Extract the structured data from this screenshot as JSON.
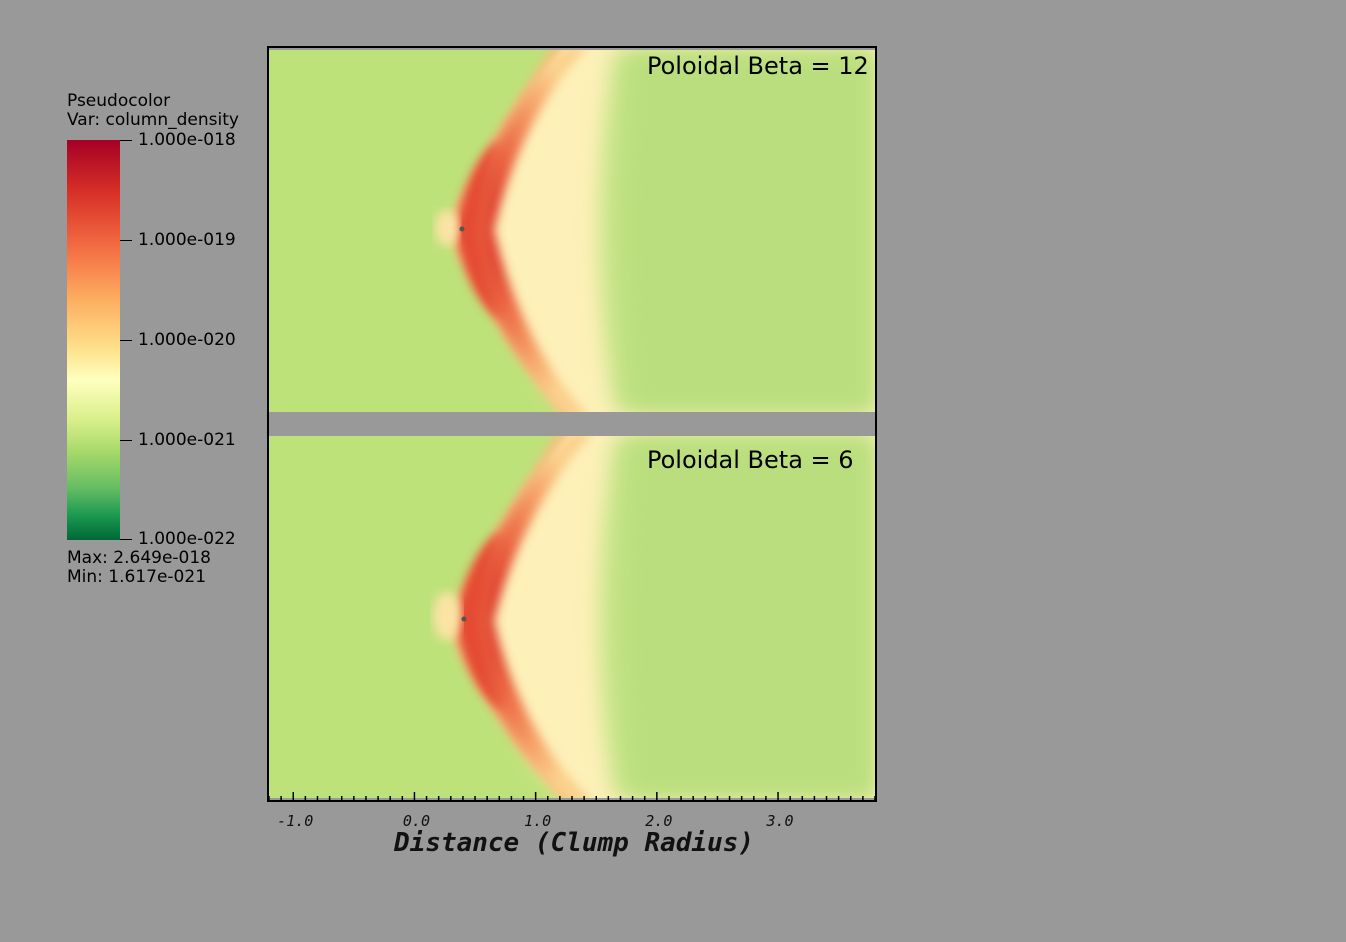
{
  "legend": {
    "title": "Pseudocolor",
    "var_label": "Var: column_density",
    "ticks": [
      "1.000e-018",
      "1.000e-019",
      "1.000e-020",
      "1.000e-021",
      "1.000e-022"
    ],
    "max_label": "Max:  2.649e-018",
    "min_label": "Min:  1.617e-021",
    "colors": [
      "#a50026",
      "#d73027",
      "#f46d43",
      "#fdae61",
      "#fee08b",
      "#ffffbf",
      "#d9ef8b",
      "#a6d96a",
      "#66bd63",
      "#1a9850",
      "#006837"
    ]
  },
  "panels": [
    {
      "label": "Poloidal Beta = 12"
    },
    {
      "label": "Poloidal Beta =  6"
    }
  ],
  "chart_data": {
    "type": "heatmap",
    "variable": "column_density",
    "colorbar_range": [
      1e-22,
      1e-18
    ],
    "colorbar_scale": "log",
    "data_max": 2.649e-18,
    "data_min": 1.617e-21,
    "xlabel": "Distance (Clump Radius)",
    "x_tick_labels": [
      "-1.0",
      "0.0",
      "1.0",
      "2.0",
      "3.0"
    ],
    "x_ticks": [
      -1.0,
      0.0,
      1.0,
      2.0,
      3.0
    ],
    "xlim": [
      -1.2,
      3.8
    ],
    "panel_titles": [
      "Poloidal Beta = 12",
      "Poloidal Beta =  6"
    ]
  }
}
